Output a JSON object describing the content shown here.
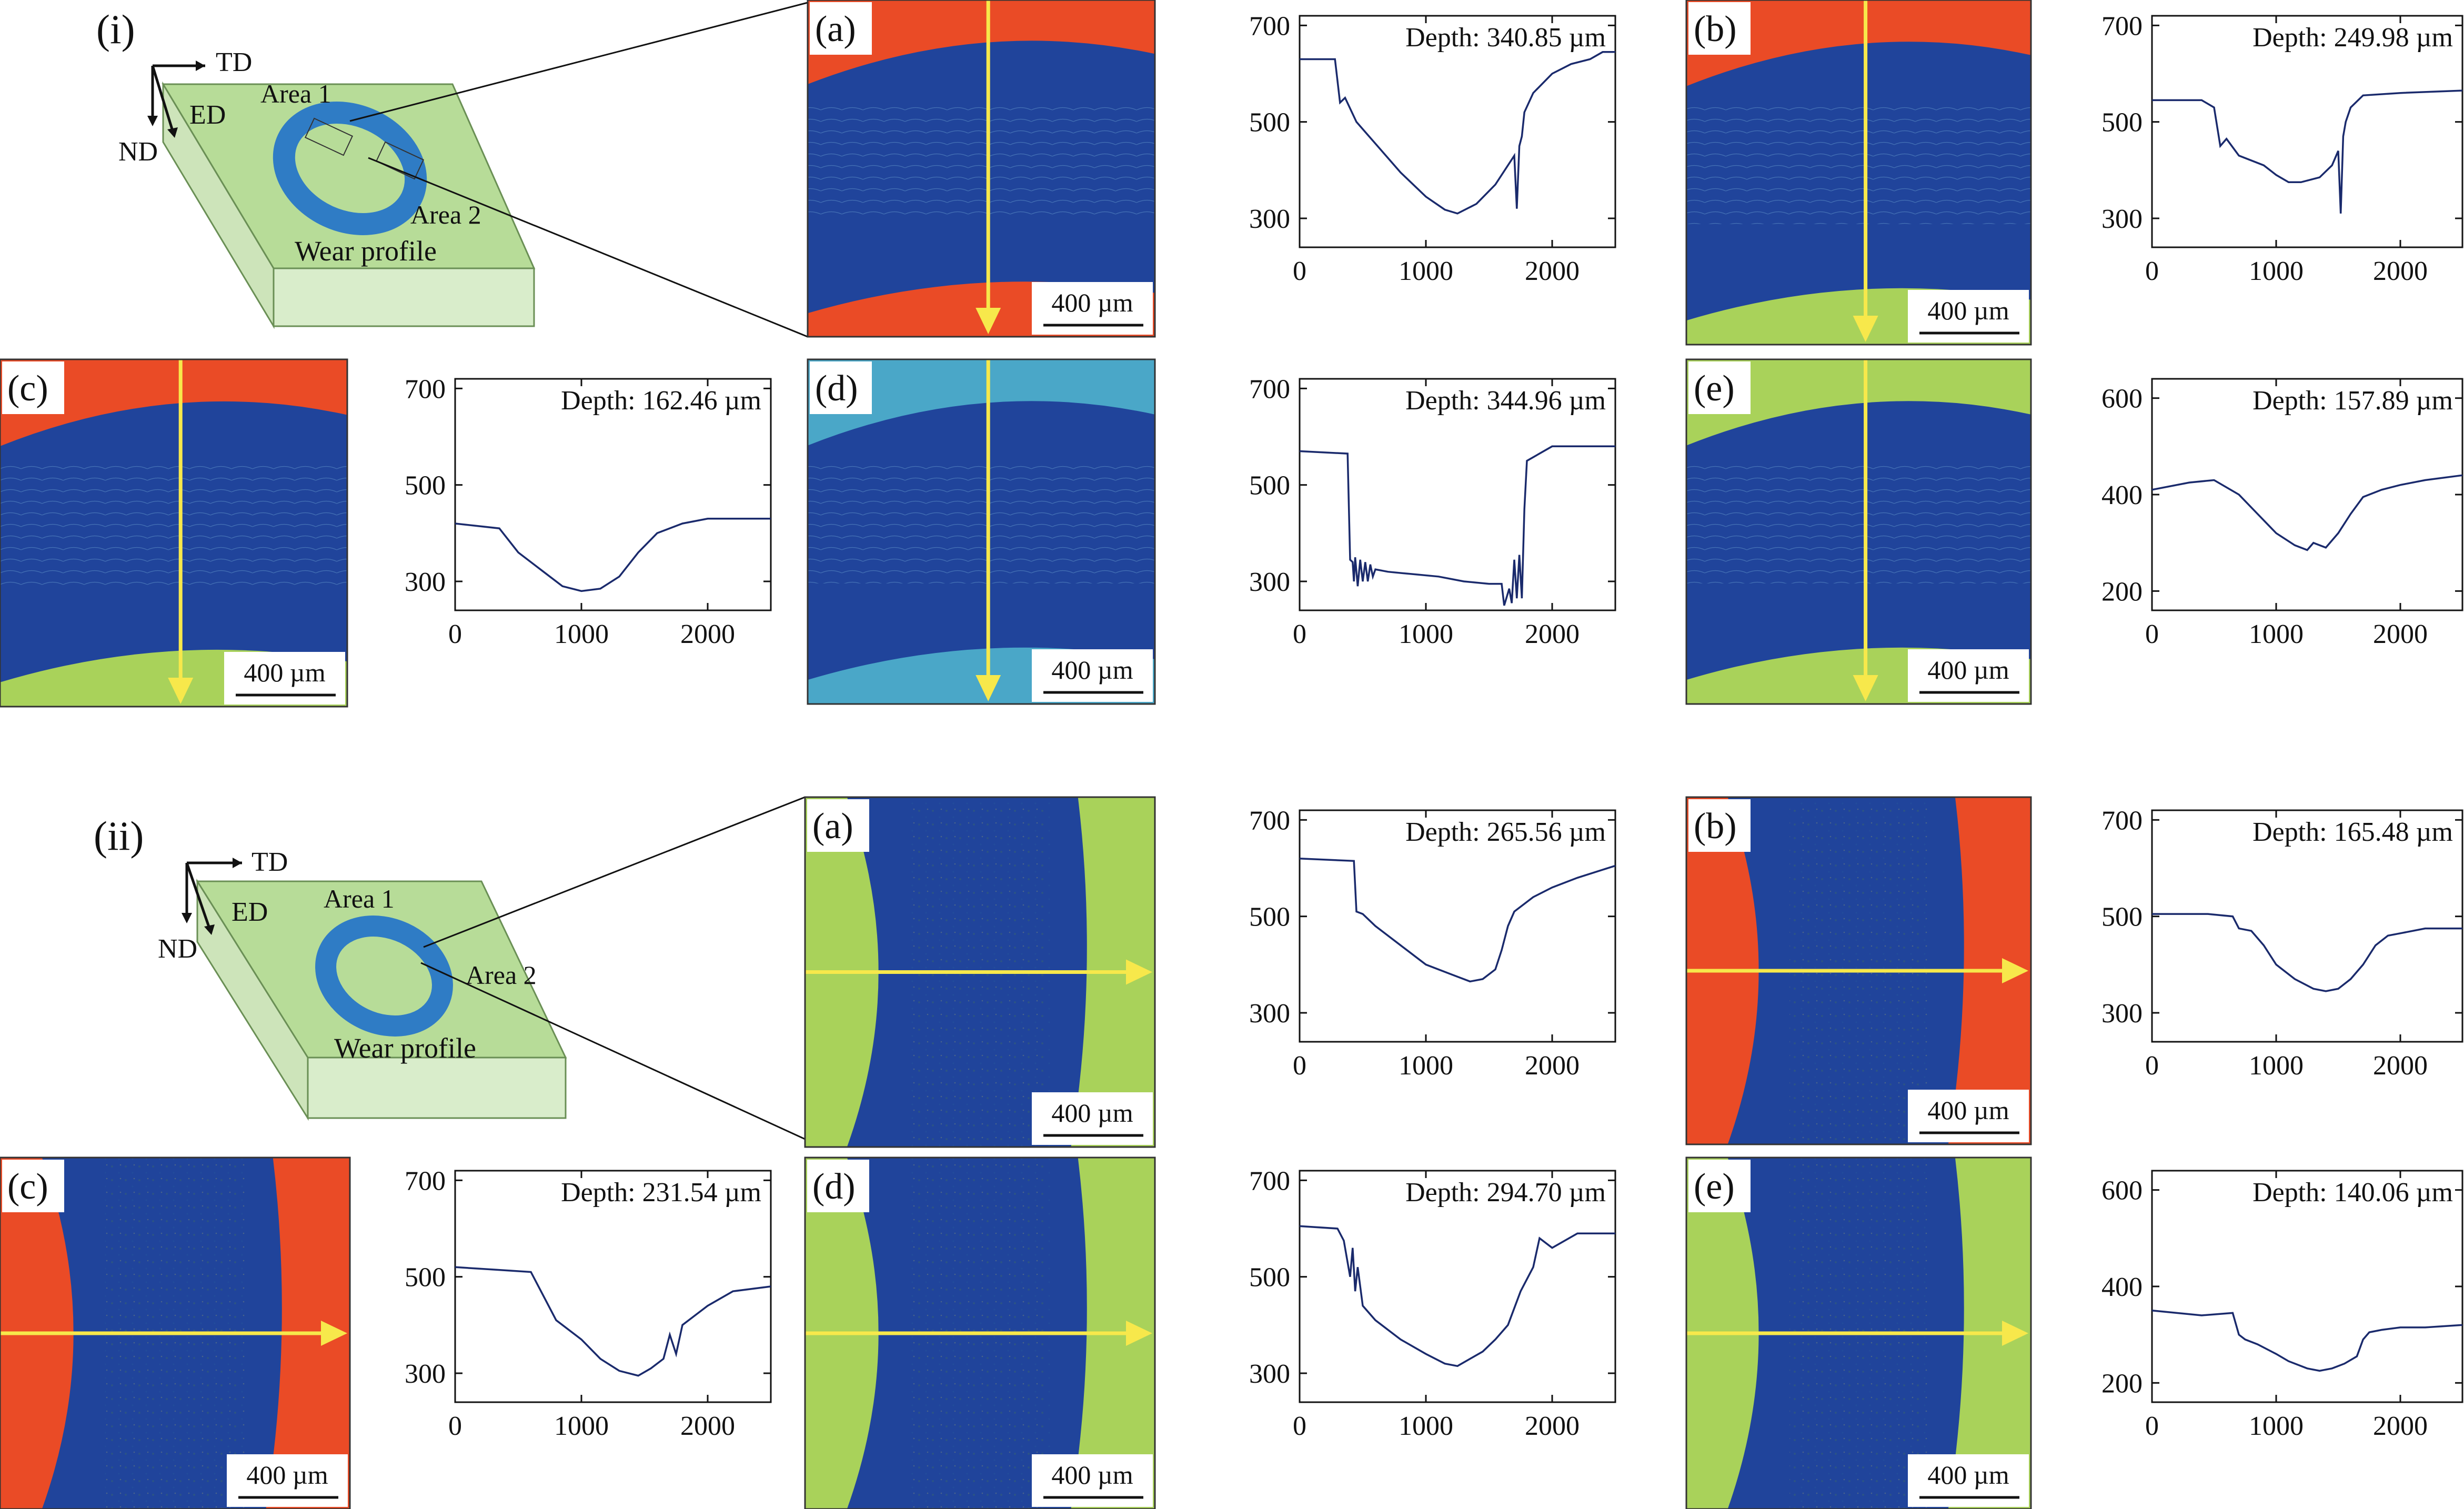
{
  "panels": {
    "section_i": "(i)",
    "section_ii": "(ii)"
  },
  "schematic": {
    "td": "TD",
    "ed": "ED",
    "nd": "ND",
    "area1": "Area 1",
    "area2": "Area 2",
    "wear_profile": "Wear profile",
    "colors": {
      "plate_top": "#b7dc98",
      "plate_side": "#d9edcb",
      "ring": "#2f7cc5"
    }
  },
  "scale_bar": "400 µm",
  "palette": {
    "blue": "#20449b",
    "red": "#ea4b26",
    "green": "#a9d25a",
    "teal": "#4aa7c8",
    "arrow": "#f7e84b",
    "trace": "#1a2a6c"
  },
  "chart_data": [
    {
      "id": "i-a",
      "section": "(i)",
      "panel": "(a)",
      "type": "line",
      "annotation": "Depth: 340.85 µm",
      "xlim": [
        0,
        2500
      ],
      "ylim": [
        240,
        720
      ],
      "xticks": [
        0,
        1000,
        2000
      ],
      "yticks": [
        300,
        500,
        700
      ],
      "x": [
        0,
        280,
        320,
        360,
        450,
        600,
        800,
        1000,
        1150,
        1250,
        1400,
        1550,
        1700,
        1720,
        1740,
        1760,
        1780,
        1850,
        2000,
        2150,
        2300,
        2400,
        2500
      ],
      "y": [
        630,
        630,
        540,
        550,
        500,
        455,
        395,
        345,
        318,
        310,
        330,
        370,
        430,
        320,
        450,
        470,
        520,
        560,
        600,
        620,
        630,
        645,
        645
      ]
    },
    {
      "id": "i-b",
      "section": "(i)",
      "panel": "(b)",
      "type": "line",
      "annotation": "Depth: 249.98 µm",
      "xlim": [
        0,
        2500
      ],
      "ylim": [
        240,
        720
      ],
      "xticks": [
        0,
        1000,
        2000
      ],
      "yticks": [
        300,
        500,
        700
      ],
      "x": [
        0,
        400,
        500,
        550,
        600,
        700,
        900,
        1000,
        1100,
        1200,
        1350,
        1450,
        1500,
        1520,
        1540,
        1560,
        1600,
        1700,
        2000,
        2500
      ],
      "y": [
        545,
        545,
        530,
        450,
        465,
        430,
        410,
        390,
        375,
        375,
        385,
        410,
        440,
        310,
        470,
        500,
        530,
        555,
        560,
        565
      ]
    },
    {
      "id": "i-c",
      "section": "(i)",
      "panel": "(c)",
      "type": "line",
      "annotation": "Depth: 162.46 µm",
      "xlim": [
        0,
        2500
      ],
      "ylim": [
        240,
        720
      ],
      "xticks": [
        0,
        1000,
        2000
      ],
      "yticks": [
        300,
        500,
        700
      ],
      "x": [
        0,
        350,
        500,
        700,
        850,
        1000,
        1150,
        1300,
        1450,
        1600,
        1800,
        2000,
        2500
      ],
      "y": [
        420,
        410,
        360,
        320,
        290,
        280,
        285,
        310,
        360,
        400,
        420,
        430,
        430
      ]
    },
    {
      "id": "i-d",
      "section": "(i)",
      "panel": "(d)",
      "type": "line",
      "annotation": "Depth: 344.96 µm",
      "xlim": [
        0,
        2500
      ],
      "ylim": [
        240,
        720
      ],
      "xticks": [
        0,
        1000,
        2000
      ],
      "yticks": [
        300,
        500,
        700
      ],
      "x": [
        0,
        380,
        400,
        420,
        430,
        440,
        460,
        480,
        500,
        520,
        540,
        560,
        580,
        600,
        700,
        900,
        1100,
        1300,
        1500,
        1600,
        1620,
        1660,
        1680,
        1700,
        1720,
        1740,
        1760,
        1780,
        1800,
        2000,
        2500
      ],
      "y": [
        570,
        565,
        345,
        340,
        300,
        350,
        290,
        345,
        300,
        340,
        300,
        335,
        310,
        325,
        320,
        315,
        310,
        300,
        295,
        295,
        250,
        285,
        255,
        345,
        265,
        355,
        265,
        450,
        550,
        580,
        580
      ]
    },
    {
      "id": "i-e",
      "section": "(i)",
      "panel": "(e)",
      "type": "line",
      "annotation": "Depth: 157.89 µm",
      "xlim": [
        0,
        2500
      ],
      "ylim": [
        160,
        640
      ],
      "xticks": [
        0,
        1000,
        2000
      ],
      "yticks": [
        200,
        400,
        600
      ],
      "x": [
        0,
        300,
        500,
        700,
        850,
        1000,
        1150,
        1250,
        1300,
        1400,
        1500,
        1600,
        1700,
        1850,
        2000,
        2200,
        2500
      ],
      "y": [
        410,
        425,
        430,
        400,
        360,
        320,
        295,
        285,
        300,
        290,
        320,
        360,
        395,
        410,
        420,
        430,
        440
      ]
    },
    {
      "id": "ii-a",
      "section": "(ii)",
      "panel": "(a)",
      "type": "line",
      "annotation": "Depth: 265.56 µm",
      "xlim": [
        0,
        2500
      ],
      "ylim": [
        240,
        720
      ],
      "xticks": [
        0,
        1000,
        2000
      ],
      "yticks": [
        300,
        500,
        700
      ],
      "x": [
        0,
        430,
        450,
        500,
        600,
        800,
        1000,
        1200,
        1350,
        1450,
        1550,
        1600,
        1650,
        1700,
        1850,
        2000,
        2200,
        2500
      ],
      "y": [
        620,
        615,
        510,
        505,
        480,
        440,
        400,
        380,
        365,
        370,
        390,
        430,
        480,
        510,
        540,
        560,
        580,
        605
      ]
    },
    {
      "id": "ii-b",
      "section": "(ii)",
      "panel": "(b)",
      "type": "line",
      "annotation": "Depth: 165.48 µm",
      "xlim": [
        0,
        2500
      ],
      "ylim": [
        240,
        720
      ],
      "xticks": [
        0,
        1000,
        2000
      ],
      "yticks": [
        300,
        500,
        700
      ],
      "x": [
        0,
        450,
        650,
        700,
        800,
        900,
        1000,
        1150,
        1300,
        1400,
        1500,
        1600,
        1700,
        1800,
        1900,
        2000,
        2200,
        2500
      ],
      "y": [
        505,
        505,
        500,
        475,
        470,
        440,
        400,
        370,
        350,
        345,
        350,
        370,
        400,
        440,
        460,
        465,
        475,
        475
      ]
    },
    {
      "id": "ii-c",
      "section": "(ii)",
      "panel": "(c)",
      "type": "line",
      "annotation": "Depth: 231.54 µm",
      "xlim": [
        0,
        2500
      ],
      "ylim": [
        240,
        720
      ],
      "xticks": [
        0,
        1000,
        2000
      ],
      "yticks": [
        300,
        500,
        700
      ],
      "x": [
        0,
        300,
        600,
        700,
        800,
        1000,
        1150,
        1300,
        1450,
        1550,
        1650,
        1700,
        1750,
        1800,
        1900,
        2000,
        2200,
        2500
      ],
      "y": [
        520,
        515,
        510,
        460,
        410,
        370,
        330,
        305,
        295,
        310,
        330,
        380,
        340,
        400,
        420,
        440,
        470,
        480
      ]
    },
    {
      "id": "ii-d",
      "section": "(ii)",
      "panel": "(d)",
      "type": "line",
      "annotation": "Depth: 294.70 µm",
      "xlim": [
        0,
        2500
      ],
      "ylim": [
        240,
        720
      ],
      "xticks": [
        0,
        1000,
        2000
      ],
      "yticks": [
        300,
        500,
        700
      ],
      "x": [
        0,
        300,
        350,
        400,
        420,
        440,
        460,
        500,
        600,
        800,
        1000,
        1150,
        1250,
        1350,
        1450,
        1550,
        1650,
        1750,
        1850,
        1900,
        2000,
        2200,
        2500
      ],
      "y": [
        605,
        600,
        575,
        500,
        560,
        470,
        520,
        440,
        410,
        370,
        340,
        320,
        315,
        330,
        345,
        370,
        400,
        470,
        520,
        580,
        560,
        590,
        590
      ]
    },
    {
      "id": "ii-e",
      "section": "(ii)",
      "panel": "(e)",
      "type": "line",
      "annotation": "Depth: 140.06 µm",
      "xlim": [
        0,
        2500
      ],
      "ylim": [
        160,
        640
      ],
      "xticks": [
        0,
        1000,
        2000
      ],
      "yticks": [
        200,
        400,
        600
      ],
      "x": [
        0,
        200,
        400,
        650,
        700,
        750,
        850,
        1000,
        1100,
        1250,
        1350,
        1450,
        1550,
        1650,
        1700,
        1750,
        1850,
        2000,
        2200,
        2500
      ],
      "y": [
        350,
        345,
        340,
        345,
        300,
        290,
        280,
        260,
        245,
        230,
        225,
        230,
        240,
        255,
        290,
        305,
        310,
        315,
        315,
        320
      ]
    }
  ]
}
